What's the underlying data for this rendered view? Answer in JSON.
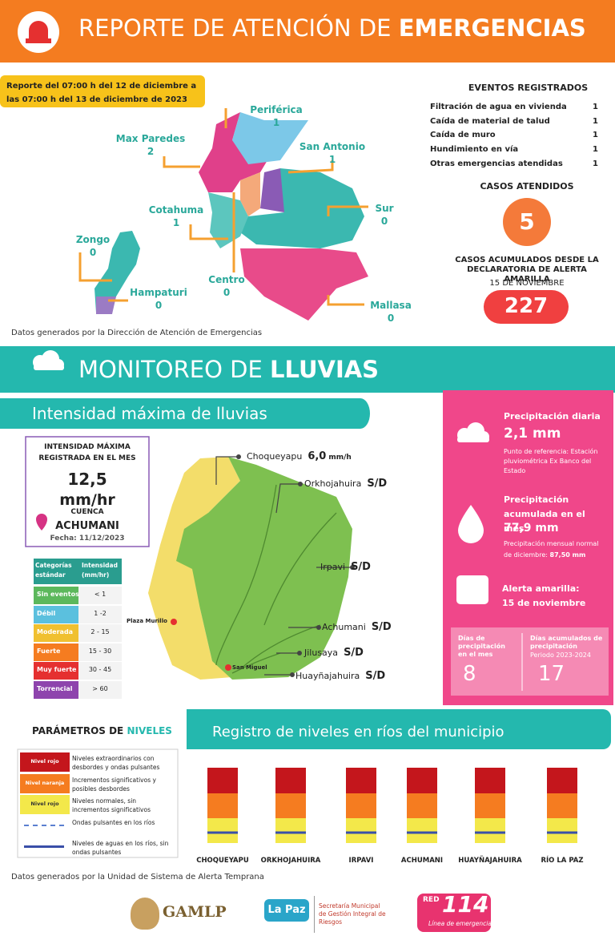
{
  "header": {
    "title_light": "REPORTE DE ATENCIÓN DE",
    "title_bold": "EMERGENCIAS"
  },
  "report_period": "Reporte del 07:00 h del 12 de diciembre a las 07:00 h del 13 de diciembre de 2023",
  "districts": [
    {
      "name": "Periférica",
      "count": "1"
    },
    {
      "name": "Max Paredes",
      "count": "2"
    },
    {
      "name": "San Antonio",
      "count": "1"
    },
    {
      "name": "Cotahuma",
      "count": "1"
    },
    {
      "name": "Sur",
      "count": "0"
    },
    {
      "name": "Zongo",
      "count": "0"
    },
    {
      "name": "Centro",
      "count": "0"
    },
    {
      "name": "Hampaturi",
      "count": "0"
    },
    {
      "name": "Mallasa",
      "count": "0"
    }
  ],
  "map_source": "Datos generados por la Dirección de Atención de Emergencias",
  "events": {
    "title": "EVENTOS REGISTRADOS",
    "items": [
      {
        "label": "Filtración de agua en vivienda",
        "count": "1"
      },
      {
        "label": "Caída de material de talud",
        "count": "1"
      },
      {
        "label": "Caída de muro",
        "count": "1"
      },
      {
        "label": "Hundimiento en vía",
        "count": "1"
      },
      {
        "label": "Otras emergencias atendidas",
        "count": "1"
      }
    ]
  },
  "cases": {
    "title": "CASOS ATENDIDOS",
    "value": "5"
  },
  "accumulated": {
    "title": "CASOS ACUMULADOS DESDE LA DECLARATORIA DE ALERTA AMARILLA",
    "date": "15 DE NOVIEMBRE",
    "value": "227"
  },
  "rain": {
    "title_light": "MONITOREO DE",
    "title_bold": "LLUVIAS",
    "subtitle": "Intensidad máxima de lluvias"
  },
  "max_box": {
    "heading": "INTENSIDAD MÁXIMA REGISTRADA EN EL MES",
    "value": "12,5",
    "unit": "mm/hr",
    "basin_label": "CUENCA",
    "basin": "ACHUMANI",
    "date": "Fecha: 11/12/2023"
  },
  "categories": {
    "headers": [
      "Categorías estándar",
      "Intensidad (mm/hr)"
    ],
    "rows": [
      [
        "Sin eventos",
        "< 1"
      ],
      [
        "Débil",
        "1 -2"
      ],
      [
        "Moderada",
        "2 - 15"
      ],
      [
        "Fuerte",
        "15 - 30"
      ],
      [
        "Muy fuerte",
        "30 - 45"
      ],
      [
        "Torrencial",
        "> 60"
      ]
    ]
  },
  "basins": [
    {
      "name": "Choqueyapu",
      "value": "6,0",
      "unit": "mm/h"
    },
    {
      "name": "Orkhojahuira",
      "value": "S/D"
    },
    {
      "name": "Irpavi",
      "value": "S/D"
    },
    {
      "name": "Achumani",
      "value": "S/D"
    },
    {
      "name": "Jilusaya",
      "value": "S/D"
    },
    {
      "name": "Huayñajahuira",
      "value": "S/D"
    }
  ],
  "places": [
    "Plaza Murillo",
    "San Miguel"
  ],
  "precipitation": {
    "daily_title": "Precipitación diaria",
    "daily_value": "2,1 mm",
    "reference": "Punto de referencia: Estación pluviométrica Ex Banco del Estado",
    "month_title": "Precipitación acumulada en el mes",
    "month_value": "77,9 mm",
    "normal_note": "Precipitación mensual normal de diciembre:",
    "normal_value": "87,50 mm",
    "alert_title": "Alerta amarilla:",
    "alert_date": "15 de noviembre",
    "days_month_label": "Días de precipitación en el mes",
    "days_month": "8",
    "days_total_label": "Días acumulados de precipitación",
    "days_total_period": "Periodo 2023-2024",
    "days_total": "17"
  },
  "levels": {
    "params_title_light": "PARÁMETROS DE",
    "params_title_bold": "NIVELES",
    "title": "Registro de niveles en ríos del municipio",
    "legend": [
      {
        "tag": "Nivel rojo",
        "text": "Niveles extraordinarios con desbordes y ondas pulsantes"
      },
      {
        "tag": "Nivel naranja",
        "text": "Incrementos significativos y posibles desbordes"
      },
      {
        "tag": "Nivel rojo",
        "text": "Niveles normales, sin incrementos significativos"
      },
      {
        "text": "Ondas pulsantes en los ríos"
      },
      {
        "text": "Niveles de aguas en los ríos, sin ondas pulsantes"
      }
    ],
    "rivers": [
      "CHOQUEYAPU",
      "ORKHOJAHUIRA",
      "IRPAVI",
      "ACHUMANI",
      "HUAYÑAJAHUIRA",
      "RÍO LA PAZ"
    ],
    "source": "Datos generados por la Unidad de Sistema de Alerta Temprana"
  },
  "footer": {
    "gamlp": "GAMLP",
    "lapaz": "La Paz",
    "secretaria": "Secretaría Municipal de Gestión Integral de Riesgos",
    "red": "RED",
    "line_number": "114",
    "line_label": "Línea de emergencia"
  }
}
